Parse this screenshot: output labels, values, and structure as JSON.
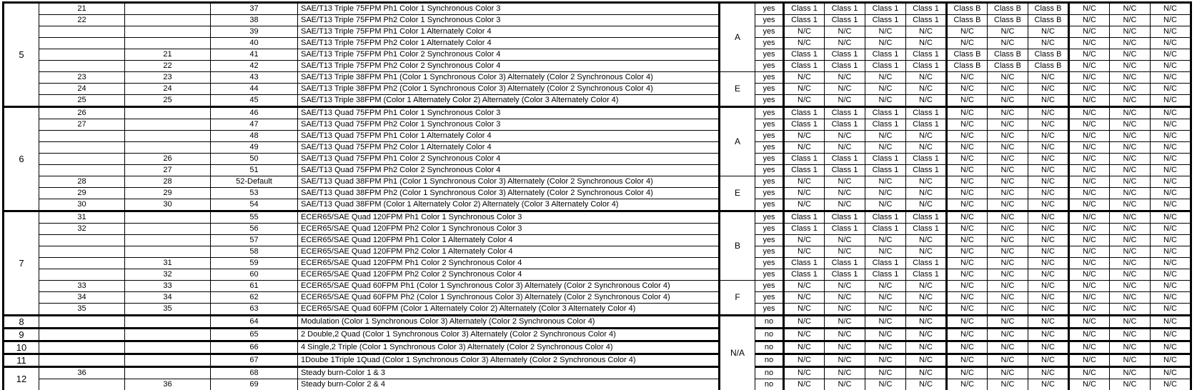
{
  "table": {
    "class_codes": {
      "1": "Class 1",
      "B": "Class B",
      "N": "N/C"
    },
    "groups": [
      {
        "group": "5",
        "letters": [
          {
            "label": "A",
            "span": 6
          },
          {
            "label": "E",
            "span": 3
          }
        ],
        "rows": [
          {
            "a": "21",
            "b": "",
            "code": "37",
            "desc": "SAE/T13 Triple 75FPM Ph1 Color 1 Synchronous Color 3",
            "flash": "yes",
            "cls": "1111BBBNNN"
          },
          {
            "a": "22",
            "b": "",
            "code": "38",
            "desc": "SAE/T13 Triple 75FPM Ph2 Color 1 Synchronous Color 3",
            "flash": "yes",
            "cls": "1111BBBNNN"
          },
          {
            "a": "",
            "b": "",
            "code": "39",
            "desc": "SAE/T13 Triple 75FPM Ph1 Color 1 Alternately Color 4",
            "flash": "yes",
            "cls": "NNNNNNNNNN"
          },
          {
            "a": "",
            "b": "",
            "code": "40",
            "desc": "SAE/T13 Triple 75FPM Ph2 Color 1 Alternately Color 4",
            "flash": "yes",
            "cls": "NNNNNNNNNN"
          },
          {
            "a": "",
            "b": "21",
            "code": "41",
            "desc": "SAE/T13 Triple 75FPM Ph1 Color 2 Synchronous Color 4",
            "flash": "yes",
            "cls": "1111BBBNNN"
          },
          {
            "a": "",
            "b": "22",
            "code": "42",
            "desc": "SAE/T13 Triple 75FPM Ph2 Color 2 Synchronous Color 4",
            "flash": "yes",
            "cls": "1111BBBNNN"
          },
          {
            "a": "23",
            "b": "23",
            "code": "43",
            "desc": "SAE/T13 Triple 38FPM Ph1 (Color 1 Synchronous Color 3) Alternately (Color 2 Synchronous Color 4)",
            "flash": "yes",
            "cls": "NNNNNNNNNN"
          },
          {
            "a": "24",
            "b": "24",
            "code": "44",
            "desc": "SAE/T13 Triple 38FPM Ph2 (Color 1 Synchronous Color 3) Alternately (Color 2 Synchronous Color 4)",
            "flash": "yes",
            "cls": "NNNNNNNNNN"
          },
          {
            "a": "25",
            "b": "25",
            "code": "45",
            "desc": "SAE/T13 Triple 38FPM (Color 1 Alternately Color 2) Alternately (Color 3 Alternately Color 4)",
            "flash": "yes",
            "cls": "NNNNNNNNNN"
          }
        ]
      },
      {
        "group": "6",
        "letters": [
          {
            "label": "A",
            "span": 6
          },
          {
            "label": "E",
            "span": 3
          }
        ],
        "rows": [
          {
            "a": "26",
            "b": "",
            "code": "46",
            "desc": "SAE/T13 Quad 75FPM Ph1 Color 1 Synchronous Color 3",
            "flash": "yes",
            "cls": "1111NNNNNN"
          },
          {
            "a": "27",
            "b": "",
            "code": "47",
            "desc": "SAE/T13 Quad 75FPM Ph2 Color 1 Synchronous Color 3",
            "flash": "yes",
            "cls": "1111NNNNNN"
          },
          {
            "a": "",
            "b": "",
            "code": "48",
            "desc": "SAE/T13 Quad 75FPM Ph1 Color 1 Alternately Color 4",
            "flash": "yes",
            "cls": "NNNNNNNNNN"
          },
          {
            "a": "",
            "b": "",
            "code": "49",
            "desc": "SAE/T13 Quad 75FPM Ph2 Color 1 Alternately Color 4",
            "flash": "yes",
            "cls": "NNNNNNNNNN"
          },
          {
            "a": "",
            "b": "26",
            "code": "50",
            "desc": "SAE/T13 Quad 75FPM Ph1 Color 2 Synchronous Color 4",
            "flash": "yes",
            "cls": "1111NNNNNN"
          },
          {
            "a": "",
            "b": "27",
            "code": "51",
            "desc": "SAE/T13 Quad 75FPM Ph2 Color 2 Synchronous Color 4",
            "flash": "yes",
            "cls": "1111NNNNNN"
          },
          {
            "a": "28",
            "b": "28",
            "code": "52-Default",
            "desc": "SAE/T13 Quad 38FPM Ph1 (Color 1 Synchronous Color 3) Alternately (Color 2 Synchronous Color 4)",
            "flash": "yes",
            "cls": "NNNNNNNNNN"
          },
          {
            "a": "29",
            "b": "29",
            "code": "53",
            "desc": "SAE/T13 Quad 38FPM Ph2 (Color 1 Synchronous Color 3) Alternately (Color 2 Synchronous Color 4)",
            "flash": "yes",
            "cls": "NNNNNNNNNN"
          },
          {
            "a": "30",
            "b": "30",
            "code": "54",
            "desc": "SAE/T13 Quad 38FPM (Color 1 Alternately Color 2) Alternately (Color 3 Alternately Color 4)",
            "flash": "yes",
            "cls": "NNNNNNNNNN"
          }
        ]
      },
      {
        "group": "7",
        "letters": [
          {
            "label": "B",
            "span": 6
          },
          {
            "label": "F",
            "span": 3
          }
        ],
        "rows": [
          {
            "a": "31",
            "b": "",
            "code": "55",
            "desc": "ECER65/SAE Quad 120FPM Ph1 Color 1 Synchronous Color 3",
            "flash": "yes",
            "cls": "1111NNNNNN"
          },
          {
            "a": "32",
            "b": "",
            "code": "56",
            "desc": "ECER65/SAE Quad 120FPM Ph2 Color 1 Synchronous Color 3",
            "flash": "yes",
            "cls": "1111NNNNNN"
          },
          {
            "a": "",
            "b": "",
            "code": "57",
            "desc": "ECER65/SAE Quad 120FPM Ph1 Color 1 Alternately Color 4",
            "flash": "yes",
            "cls": "NNNNNNNNNN"
          },
          {
            "a": "",
            "b": "",
            "code": "58",
            "desc": "ECER65/SAE Quad 120FPM Ph2 Color 1 Alternately Color 4",
            "flash": "yes",
            "cls": "NNNNNNNNNN"
          },
          {
            "a": "",
            "b": "31",
            "code": "59",
            "desc": "ECER65/SAE Quad 120FPM Ph1 Color 2 Synchronous Color 4",
            "flash": "yes",
            "cls": "1111NNNNNN"
          },
          {
            "a": "",
            "b": "32",
            "code": "60",
            "desc": "ECER65/SAE Quad 120FPM Ph2 Color 2 Synchronous Color 4",
            "flash": "yes",
            "cls": "1111NNNNNN"
          },
          {
            "a": "33",
            "b": "33",
            "code": "61",
            "desc": "ECER65/SAE Quad 60FPM Ph1 (Color 1 Synchronous Color 3) Alternately (Color 2 Synchronous Color 4)",
            "flash": "yes",
            "cls": "NNNNNNNNNN"
          },
          {
            "a": "34",
            "b": "34",
            "code": "62",
            "desc": "ECER65/SAE Quad 60FPM Ph2 (Color 1 Synchronous Color 3) Alternately (Color 2 Synchronous Color 4)",
            "flash": "yes",
            "cls": "NNNNNNNNNN"
          },
          {
            "a": "35",
            "b": "35",
            "code": "63",
            "desc": "ECER65/SAE Quad 60FPM (Color 1 Alternately Color 2) Alternately (Color 3 Alternately Color 4)",
            "flash": "yes",
            "cls": "NNNNNNNNNN"
          }
        ]
      },
      {
        "group": "8",
        "letters": [
          {
            "label": "N/A",
            "span": 6
          }
        ],
        "rows": [
          {
            "a": "",
            "b": "",
            "code": "64",
            "desc": "Modulation (Color 1 Synchronous Color 3) Alternately (Color 2 Synchronous Color 4)",
            "flash": "no",
            "cls": "NNNNNNNNNN"
          }
        ]
      },
      {
        "group": "9",
        "letters": [],
        "rows": [
          {
            "a": "",
            "b": "",
            "code": "65",
            "desc": "2 Double,2 Quad (Color 1 Synchronous Color 3) Alternately (Color 2 Synchronous Color 4)",
            "flash": "no",
            "cls": "NNNNNNNNNN"
          }
        ]
      },
      {
        "group": "10",
        "letters": [],
        "rows": [
          {
            "a": "",
            "b": "",
            "code": "66",
            "desc": "4 Single,2 Triple (Color 1 Synchronous Color 3) Alternately (Color 2 Synchronous Color 4)",
            "flash": "no",
            "cls": "NNNNNNNNNN"
          }
        ]
      },
      {
        "group": "11",
        "letters": [],
        "rows": [
          {
            "a": "",
            "b": "",
            "code": "67",
            "desc": "1Doube 1Triple 1Quad (Color 1 Synchronous Color 3) Alternately (Color 2 Synchronous Color 4)",
            "flash": "no",
            "cls": "NNNNNNNNNN"
          }
        ]
      },
      {
        "group": "12",
        "letters": [],
        "rows": [
          {
            "a": "36",
            "b": "",
            "code": "68",
            "desc": "Steady burn-Color 1 & 3",
            "flash": "no",
            "cls": "NNNNNNNNNN"
          },
          {
            "a": "",
            "b": "36",
            "code": "69",
            "desc": "Steady burn-Color 2 & 4",
            "flash": "no",
            "cls": "NNNNNNNNNN"
          }
        ]
      }
    ]
  }
}
